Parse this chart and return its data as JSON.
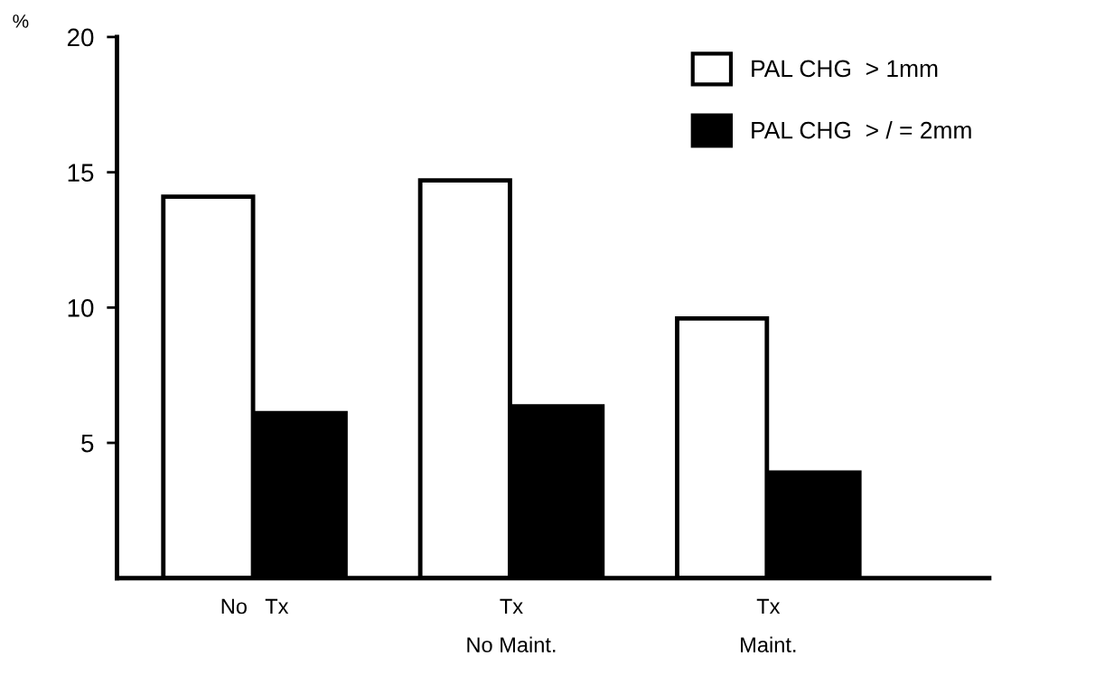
{
  "chart_data": {
    "type": "bar",
    "ylabel": "%",
    "categories": [
      "No   Tx",
      "Tx\nNo Maint.",
      "Tx\nMaint."
    ],
    "series": [
      {
        "name": "PAL CHG  > 1mm",
        "color": "#ffffff",
        "values": [
          14.1,
          14.7,
          9.6
        ]
      },
      {
        "name": "PAL CHG  > / = 2mm",
        "color": "#000000",
        "values": [
          6.1,
          6.35,
          3.9
        ]
      }
    ],
    "ylim": [
      0,
      20
    ],
    "yticks": [
      5,
      10,
      15,
      20
    ],
    "grid": false,
    "legend": "top right"
  }
}
